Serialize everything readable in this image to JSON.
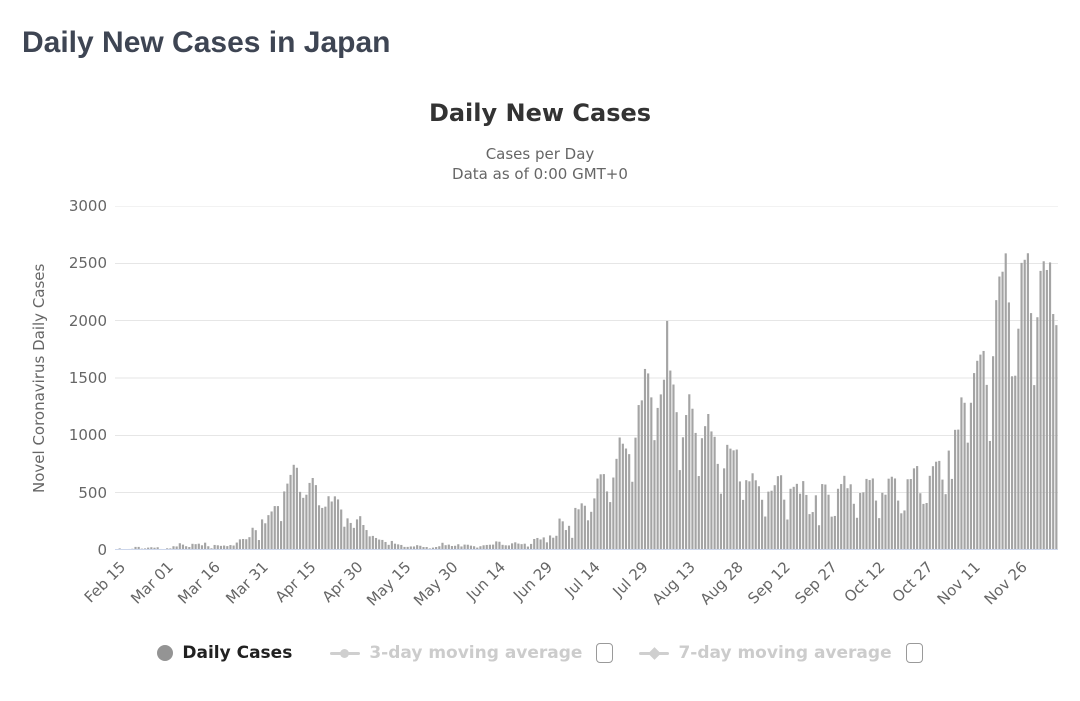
{
  "page": {
    "title": "Daily New Cases in Japan"
  },
  "chart": {
    "title": "Daily New Cases",
    "subtitle_line1": "Cases per Day",
    "subtitle_line2": "Data as of 0:00 GMT+0",
    "y_axis_title": "Novel Coronavirus Daily Cases",
    "legend": {
      "daily_cases_label": "Daily Cases",
      "avg3_label": "3-day moving average",
      "avg7_label": "7-day moving average",
      "avg3_checked": false,
      "avg7_checked": false
    },
    "colors": {
      "bar": "#a4a4a4",
      "grid_line": "#e6e6e6",
      "axis_line": "#ccd6eb",
      "title_text": "#333333",
      "subtitle_text": "#666666",
      "axis_label_text": "#666666",
      "legend_enabled_text": "#212121",
      "legend_disabled_text": "#cccccc",
      "page_title_text": "#3e4553"
    }
  },
  "chart_data": {
    "type": "bar",
    "title": "Daily New Cases",
    "subtitle": "Cases per Day — Data as of 0:00 GMT+0",
    "series_name": "Daily Cases",
    "xlabel": "",
    "ylabel": "Novel Coronavirus Daily Cases",
    "ylim": [
      0,
      3000
    ],
    "y_ticks": [
      0,
      500,
      1000,
      1500,
      2000,
      2500,
      3000
    ],
    "grid": true,
    "legend_position": "bottom",
    "x_start_label": "Feb 15",
    "x_tick_interval_days": 15,
    "x_tick_labels": [
      "Feb 15",
      "Mar 01",
      "Mar 16",
      "Mar 31",
      "Apr 15",
      "Apr 30",
      "May 15",
      "May 30",
      "Jun 14",
      "Jun 29",
      "Jul 14",
      "Jul 29",
      "Aug 13",
      "Aug 28",
      "Sep 12",
      "Sep 27",
      "Oct 12",
      "Oct 27",
      "Nov 11",
      "Nov 26"
    ],
    "values": [
      8,
      14,
      6,
      6,
      9,
      11,
      27,
      27,
      12,
      14,
      21,
      24,
      20,
      24,
      9,
      6,
      15,
      14,
      33,
      31,
      59,
      47,
      33,
      26,
      54,
      51,
      55,
      41,
      64,
      33,
      15,
      44,
      41,
      36,
      39,
      34,
      43,
      39,
      65,
      93,
      96,
      94,
      112,
      194,
      173,
      87,
      267,
      233,
      304,
      336,
      383,
      383,
      252,
      511,
      579,
      655,
      743,
      717,
      507,
      455,
      482,
      585,
      628,
      566,
      390,
      367,
      378,
      469,
      423,
      468,
      441,
      353,
      203,
      276,
      236,
      193,
      267,
      295,
      218,
      174,
      119,
      123,
      105,
      91,
      88,
      70,
      45,
      79,
      55,
      49,
      44,
      27,
      27,
      31,
      31,
      42,
      37,
      26,
      26,
      14,
      21,
      26,
      33,
      63,
      42,
      47,
      35,
      37,
      50,
      31,
      47,
      46,
      38,
      33,
      21,
      33,
      41,
      44,
      46,
      47,
      75,
      72,
      45,
      41,
      40,
      58,
      67,
      56,
      51,
      55,
      30,
      53,
      96,
      105,
      92,
      110,
      67,
      127,
      107,
      124,
      274,
      250,
      174,
      211,
      106,
      367,
      355,
      407,
      386,
      259,
      333,
      450,
      623,
      660,
      662,
      511,
      418,
      632,
      795,
      981,
      927,
      885,
      836,
      595,
      980,
      1264,
      1305,
      1579,
      1540,
      1331,
      958,
      1239,
      1357,
      1485,
      1998,
      1565,
      1443,
      1202,
      697,
      983,
      1177,
      1358,
      1232,
      1021,
      645,
      975,
      1080,
      1186,
      1034,
      987,
      751,
      491,
      712,
      917,
      884,
      869,
      876,
      598,
      437,
      609,
      599,
      669,
      608,
      556,
      438,
      292,
      509,
      517,
      565,
      644,
      652,
      439,
      266,
      534,
      551,
      577,
      491,
      601,
      480,
      313,
      331,
      477,
      216,
      575,
      571,
      482,
      291,
      297,
      534,
      575,
      647,
      539,
      573,
      403,
      281,
      497,
      503,
      620,
      610,
      624,
      431,
      278,
      499,
      482,
      622,
      639,
      624,
      431,
      320,
      345,
      617,
      619,
      712,
      732,
      495,
      402,
      410,
      647,
      731,
      770,
      777,
      614,
      487,
      867,
      620,
      1048,
      1050,
      1331,
      1284,
      936,
      1284,
      1543,
      1650,
      1704,
      1736,
      1440,
      951,
      1690,
      2179,
      2385,
      2427,
      2587,
      2159,
      1515,
      1520,
      1930,
      2504,
      2531,
      2588,
      2066,
      1438,
      2030,
      2434,
      2518,
      2442,
      2508,
      2058,
      1961
    ]
  }
}
